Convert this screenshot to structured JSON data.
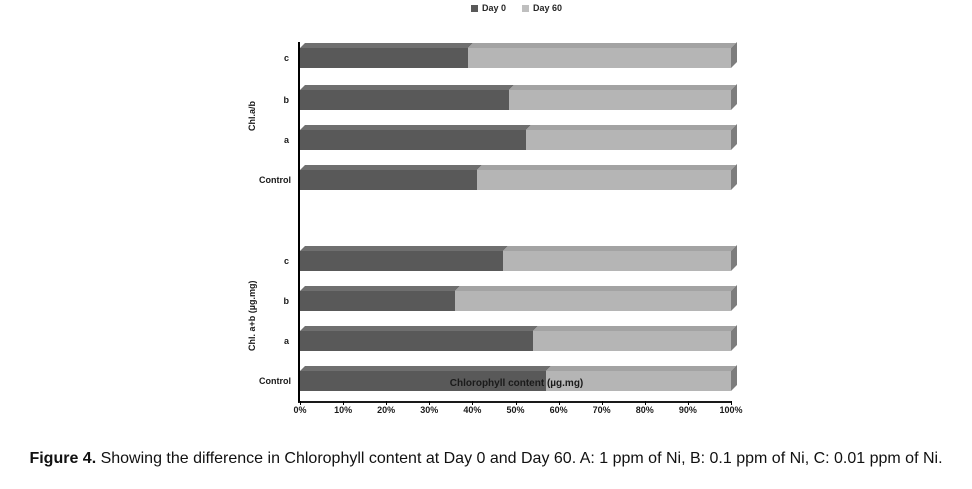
{
  "chart_data": {
    "type": "bar",
    "orientation": "horizontal",
    "stacked": true,
    "grid": false,
    "legend_position": "top-center",
    "xlabel": "Chlorophyll content (µg.mg)",
    "xlim": [
      0,
      100
    ],
    "x_ticks": [
      "0%",
      "10%",
      "20%",
      "30%",
      "40%",
      "50%",
      "60%",
      "70%",
      "80%",
      "90%",
      "100%"
    ],
    "series": [
      {
        "name": "Day 0",
        "color": "#595959"
      },
      {
        "name": "Day 60",
        "color": "#b5b5b5"
      }
    ],
    "colors": {
      "day0_front": "#595959",
      "day0_top": "#6f6f6f",
      "day60_front": "#b5b5b5",
      "day60_top": "#a3a3a3",
      "endcap": "#7d7d7d",
      "legend_day0": "#595959",
      "legend_day60": "#bfbfbf"
    },
    "groups": [
      {
        "label": "Chl.a/b",
        "categories": [
          "c",
          "b",
          "a",
          "Control"
        ],
        "day0_percent": [
          39,
          48.5,
          52.5,
          41
        ],
        "day60_percent": [
          61,
          51.5,
          47.5,
          59
        ]
      },
      {
        "label": "Chl. a+b (µg.mg)",
        "categories": [
          "c",
          "b",
          "a",
          "Control"
        ],
        "day0_percent": [
          47,
          36,
          54,
          57
        ],
        "day60_percent": [
          53,
          64,
          46,
          43
        ]
      }
    ]
  },
  "caption": {
    "label": "Figure 4.",
    "text": " Showing the difference in Chlorophyll content at Day 0 and Day 60. A: 1 ppm of Ni, B: 0.1 ppm of Ni, C: 0.01 ppm of Ni."
  }
}
